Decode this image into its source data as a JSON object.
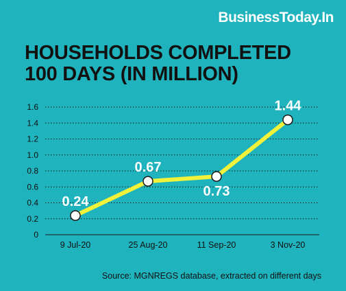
{
  "brand": {
    "text": "BusinessToday.In"
  },
  "source": {
    "text": "Source: MGNREGS database, extracted on different days"
  },
  "colors": {
    "background": "#1fb3bd",
    "line": "#f2f23a",
    "marker_fill": "#ffffff",
    "marker_stroke": "#1a1a1a",
    "grid": "#1a1a1a",
    "text": "#111111",
    "label_white": "#ffffff"
  },
  "chart_data": {
    "type": "line",
    "title": "HOUSEHOLDS COMPLETED 100 DAYS (IN MILLION)",
    "xlabel": "",
    "ylabel": "",
    "categories": [
      "9 Jul-20",
      "25 Aug-20",
      "11 Sep-20",
      "3 Nov-20"
    ],
    "values": [
      0.24,
      0.67,
      0.73,
      1.44
    ],
    "data_labels": [
      "0.24",
      "0.67",
      "0.73",
      "1.44"
    ],
    "ylim": [
      0,
      1.6
    ],
    "yticks": [
      0,
      0.2,
      0.4,
      0.6,
      0.8,
      1.0,
      1.2,
      1.4,
      1.6
    ],
    "ytick_labels": [
      "0",
      "0.2",
      "0.4",
      "0.6",
      "0.8",
      "1.0",
      "1.2",
      "1.4",
      "1.6"
    ],
    "grid": "horizontal dotted",
    "legend": "none"
  }
}
